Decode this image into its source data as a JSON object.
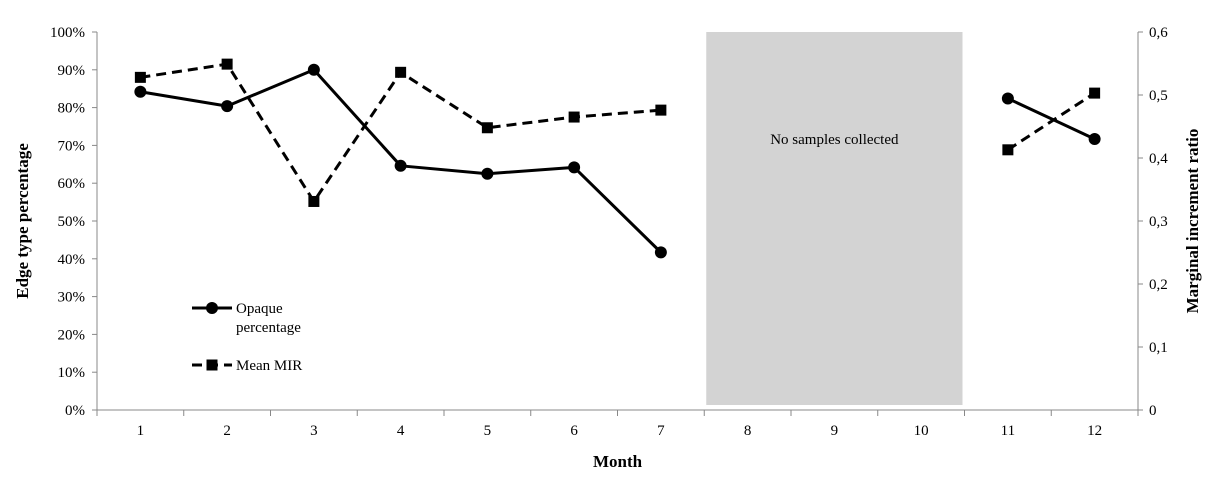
{
  "chart_data": {
    "type": "line",
    "xlabel": "Month",
    "ylabel_left": "Edge type percentage",
    "ylabel_right": "Marginal increment ratio",
    "categories": [
      "1",
      "2",
      "3",
      "4",
      "5",
      "6",
      "7",
      "8",
      "9",
      "10",
      "11",
      "12"
    ],
    "left_axis": {
      "ylim": [
        0,
        100
      ],
      "ticks": [
        "0%",
        "10%",
        "20%",
        "30%",
        "40%",
        "50%",
        "60%",
        "70%",
        "80%",
        "90%",
        "100%"
      ]
    },
    "right_axis": {
      "ylim": [
        0,
        0.6
      ],
      "ticks": [
        "0",
        "0,1",
        "0,2",
        "0,3",
        "0,4",
        "0,5",
        "0,6"
      ]
    },
    "series": [
      {
        "name_lines": [
          "Opaque",
          "percentage"
        ],
        "axis": "left",
        "style": "solid",
        "marker": "circle",
        "segments": [
          [
            [
              1,
              84.2
            ],
            [
              2,
              80.4
            ],
            [
              3,
              90.0
            ],
            [
              4,
              64.6
            ],
            [
              5,
              62.5
            ],
            [
              6,
              64.2
            ],
            [
              7,
              41.7
            ]
          ],
          [
            [
              11,
              82.4
            ],
            [
              12,
              71.7
            ]
          ]
        ]
      },
      {
        "name_lines": [
          "Mean MIR"
        ],
        "axis": "right",
        "style": "dashed",
        "marker": "square",
        "segments": [
          [
            [
              1,
              0.528
            ],
            [
              2,
              0.549
            ],
            [
              3,
              0.331
            ],
            [
              4,
              0.536
            ],
            [
              5,
              0.448
            ],
            [
              6,
              0.465
            ],
            [
              7,
              0.476
            ]
          ],
          [
            [
              11,
              0.413
            ],
            [
              12,
              0.503
            ]
          ]
        ]
      }
    ],
    "shaded_region": {
      "from": 8,
      "to": 10,
      "label": "No samples collected",
      "color": "#d3d3d3"
    },
    "legend_position": "lower-left",
    "grid": false
  }
}
